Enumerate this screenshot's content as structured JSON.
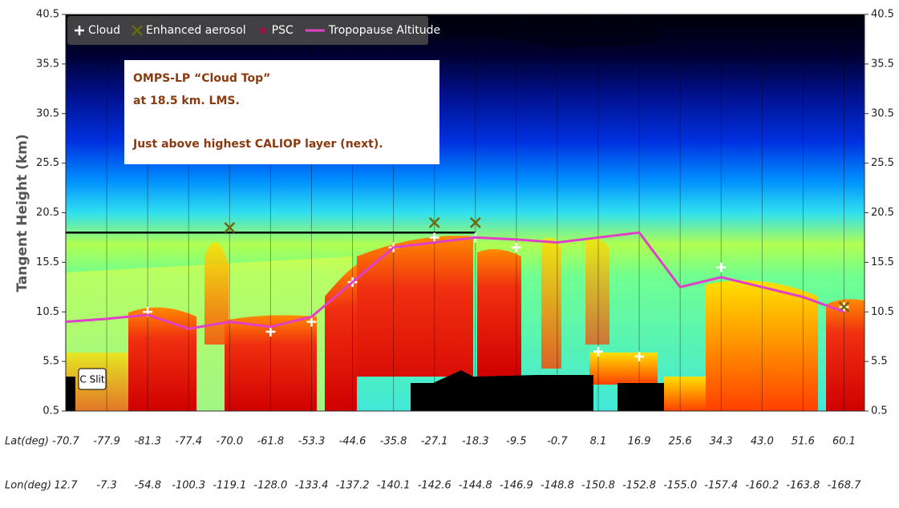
{
  "chart_data": {
    "type": "curtain",
    "ylabel": "Tangent Height (km)",
    "ylim": [
      0.5,
      40.5
    ],
    "yticks": [
      0.5,
      5.5,
      10.5,
      15.5,
      20.5,
      25.5,
      30.5,
      35.5,
      40.5
    ],
    "row_labels": [
      "Lat(deg)",
      "Lon(deg)"
    ],
    "categories": [
      "-70.7",
      "-77.9",
      "-81.3",
      "-77.4",
      "-70.0",
      "-61.8",
      "-53.3",
      "-44.6",
      "-35.8",
      "-27.1",
      "-18.3",
      "-9.5",
      "-0.7",
      "8.1",
      "16.9",
      "25.6",
      "34.3",
      "43.0",
      "51.6",
      "60.1"
    ],
    "lon": [
      "12.7",
      "-7.3",
      "-54.8",
      "-100.3",
      "-119.1",
      "-128.0",
      "-133.4",
      "-137.2",
      "-140.1",
      "-142.6",
      "-144.8",
      "-146.9",
      "-148.8",
      "-150.8",
      "-152.8",
      "-155.0",
      "-157.4",
      "-160.2",
      "-163.8",
      "-168.7"
    ],
    "series": [
      {
        "name": "Cloud",
        "color": "#ffffff",
        "marker": "plus",
        "values": [
          null,
          null,
          10.5,
          null,
          null,
          8.5,
          9.5,
          13.5,
          17,
          18,
          18,
          17,
          null,
          6.5,
          6,
          null,
          15,
          null,
          null,
          11
        ]
      },
      {
        "name": "Enhanced aerosol",
        "color": "#6b6b10",
        "marker": "x",
        "values": [
          null,
          null,
          null,
          null,
          19,
          null,
          null,
          null,
          null,
          19.5,
          19.5,
          null,
          null,
          null,
          null,
          null,
          null,
          null,
          null,
          11
        ]
      },
      {
        "name": "PSC",
        "color": "#a0104a",
        "marker": "star",
        "values": [
          null,
          null,
          null,
          null,
          null,
          null,
          null,
          null,
          null,
          null,
          null,
          null,
          null,
          null,
          null,
          null,
          null,
          null,
          null,
          null
        ]
      },
      {
        "name": "Tropopause Altitude",
        "color": "#e040c8",
        "marker": "line",
        "values": [
          9.5,
          9.8,
          10.2,
          8.8,
          9.5,
          9.0,
          10.0,
          13.5,
          17.0,
          17.5,
          18.0,
          17.8,
          17.5,
          18.0,
          18.5,
          13.0,
          14.0,
          13.0,
          12.0,
          10.5
        ]
      }
    ],
    "reference_line": 18.5,
    "annotation": [
      "OMPS-LP “Cloud Top”",
      " at 18.5 km. LMS.",
      "Just above highest CALIOP layer (next)."
    ],
    "inset_label": "C Slit"
  }
}
